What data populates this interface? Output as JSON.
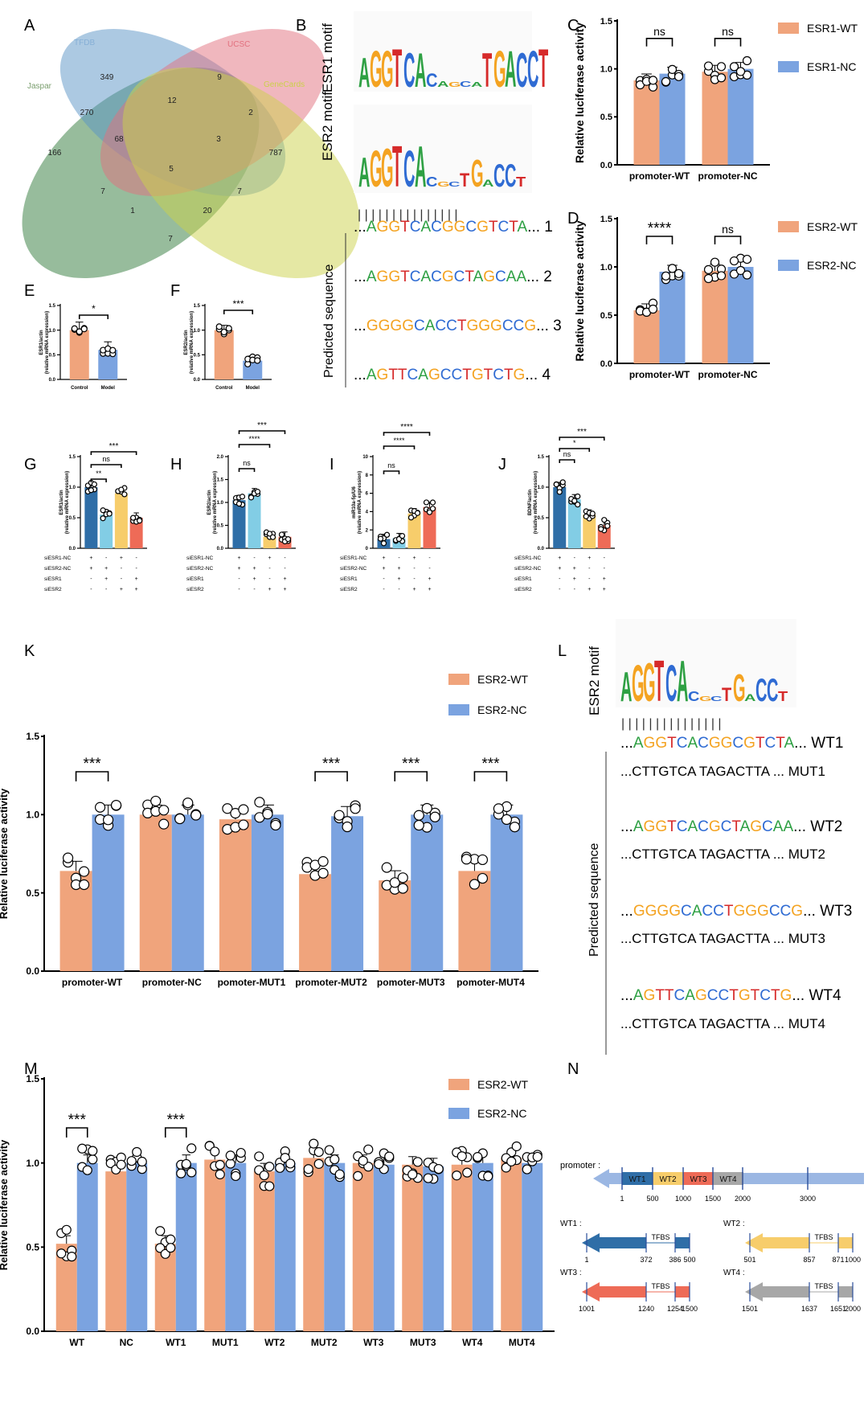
{
  "panels": {
    "A": "A",
    "B": "B",
    "C": "C",
    "D": "D",
    "E": "E",
    "F": "F",
    "G": "G",
    "H": "H",
    "I": "I",
    "J": "J",
    "K": "K",
    "L": "L",
    "M": "M",
    "N": "N"
  },
  "colors": {
    "salmon": "#f0a47c",
    "blue": "#7ba3e0",
    "g_dark": "#2f6ea7",
    "g_light": "#82cde5",
    "g_yellow": "#f7cd6b",
    "g_red": "#ee6b57",
    "dna_A": "#2ea043",
    "dna_C": "#2f6bd3",
    "dna_G": "#f4a321",
    "dna_T": "#d62a2a"
  },
  "venn": {
    "sets": [
      "Jaspar",
      "TFDB",
      "UCSC",
      "GeneCards"
    ],
    "counts": [
      "349",
      "9",
      "12",
      "270",
      "2",
      "166",
      "68",
      "3",
      "787",
      "5",
      "7",
      "7",
      "1",
      "20",
      "7"
    ]
  },
  "motifs": {
    "esr1": "ESR1 motif",
    "esr2": "ESR2 motif",
    "bar": "| | | | | | | | | | | | | | |"
  },
  "sequences": {
    "predicted_label": "Predicted sequence",
    "b_rows": [
      {
        "prefix": "...",
        "seq": "AGGTCACGGCGTCTA",
        "suffix": "... 1"
      },
      {
        "prefix": "...",
        "seq": "AGGTCACGCTAGCAA",
        "suffix": "... 2"
      },
      {
        "prefix": "...",
        "seq": "GGGGCACCTGGGCCG",
        "suffix": "... 3"
      },
      {
        "prefix": "...",
        "seq": "AGTTCAGCCTGTCTG",
        "suffix": "... 4"
      }
    ],
    "l_rows": [
      {
        "prefix": "...",
        "seq": "AGGTCACGGCGTCTA",
        "suffix": "... WT1",
        "mut": "...CTTGTCA TAGACTTA ... MUT1"
      },
      {
        "prefix": "...",
        "seq": "AGGTCACGCTAGCAA",
        "suffix": "... WT2",
        "mut": "...CTTGTCA TAGACTTA ... MUT2"
      },
      {
        "prefix": "...",
        "seq": "GGGGCACCTGGGCCG",
        "suffix": "... WT3",
        "mut": "...CTTGTCA TAGACTTA ... MUT3"
      },
      {
        "prefix": "...",
        "seq": "AGTTCAGCCTGTCTG",
        "suffix": "... WT4",
        "mut": "...CTTGTCA TAGACTTA ... MUT4"
      }
    ]
  },
  "chart_data": [
    {
      "id": "C",
      "type": "bar",
      "ylabel": "Relative luciferase activity",
      "ylim": [
        0,
        1.5
      ],
      "yticks": [
        "0.0",
        "0.5",
        "1.0",
        "1.5"
      ],
      "categories": [
        "promoter-WT",
        "promoter-NC"
      ],
      "series": [
        {
          "name": "ESR1-WT",
          "values": [
            0.88,
            0.97
          ]
        },
        {
          "name": "ESR1-NC",
          "values": [
            0.95,
            1.0
          ]
        }
      ],
      "sig": [
        "ns",
        "ns"
      ]
    },
    {
      "id": "D",
      "type": "bar",
      "ylabel": "Relative luciferase activity",
      "ylim": [
        0,
        1.5
      ],
      "yticks": [
        "0.0",
        "0.5",
        "1.0",
        "1.5"
      ],
      "categories": [
        "promoter-WT",
        "promoter-NC"
      ],
      "series": [
        {
          "name": "ESR2-WT",
          "values": [
            0.55,
            0.96
          ]
        },
        {
          "name": "ESR2-NC",
          "values": [
            0.95,
            1.0
          ]
        }
      ],
      "sig": [
        "****",
        "ns"
      ]
    },
    {
      "id": "E",
      "type": "bar",
      "ylabel": "ESR1/actin",
      "ylabel2": "(relative mRNA expression)",
      "ylim": [
        0,
        1.5
      ],
      "yticks": [
        "0.0",
        "0.5",
        "1.0",
        "1.5"
      ],
      "categories": [
        "Control",
        "Model"
      ],
      "values": [
        1.0,
        0.6
      ],
      "sig": "*"
    },
    {
      "id": "F",
      "type": "bar",
      "ylabel": "ESR2/actin",
      "ylabel2": "(relative mRNA expression)",
      "ylim": [
        0,
        1.5
      ],
      "yticks": [
        "0.0",
        "0.5",
        "1.0",
        "1.5"
      ],
      "categories": [
        "Control",
        "Model"
      ],
      "values": [
        1.0,
        0.38
      ],
      "sig": "***"
    },
    {
      "id": "G",
      "type": "bar",
      "ylabel": "ESR1/actin",
      "ylabel2": "(relative mRNA expression)",
      "ylim": [
        0,
        1.5
      ],
      "yticks": [
        "0.0",
        "0.5",
        "1.0",
        "1.5"
      ],
      "values": [
        1.0,
        0.55,
        0.9,
        0.5
      ],
      "sig": [
        "**",
        "ns",
        "***"
      ]
    },
    {
      "id": "H",
      "type": "bar",
      "ylabel": "ESR2/actin",
      "ylabel2": "(relative mRNA expression)",
      "ylim": [
        0,
        2.0
      ],
      "yticks": [
        "0.0",
        "0.5",
        "1.0",
        "1.5",
        "2.0"
      ],
      "values": [
        1.05,
        1.2,
        0.25,
        0.25
      ],
      "sig": [
        "ns",
        "****",
        "***"
      ]
    },
    {
      "id": "I",
      "type": "bar",
      "ylabel": "miR10a-5p/U6",
      "ylabel2": "(relative mRNA expression)",
      "ylim": [
        0,
        10
      ],
      "yticks": [
        "0",
        "2",
        "4",
        "6",
        "8",
        "10"
      ],
      "values": [
        1.0,
        1.1,
        3.8,
        4.5
      ],
      "sig": [
        "ns",
        "****",
        "****"
      ]
    },
    {
      "id": "J",
      "type": "bar",
      "ylabel": "BDNF/actin",
      "ylabel2": "(relative mRNA expression)",
      "ylim": [
        0,
        1.5
      ],
      "yticks": [
        "0.0",
        "0.5",
        "1.0",
        "1.5"
      ],
      "values": [
        1.0,
        0.8,
        0.55,
        0.38
      ],
      "sig": [
        "ns",
        "*",
        "***"
      ]
    },
    {
      "id": "K",
      "type": "bar",
      "ylabel": "Relative luciferase activity",
      "ylim": [
        0,
        1.5
      ],
      "yticks": [
        "0.0",
        "0.5",
        "1.0",
        "1.5"
      ],
      "categories": [
        "promoter-WT",
        "promoter-NC",
        "pomoter-MUT1",
        "promoter-MUT2",
        "pomoter-MUT3",
        "pomoter-MUT4"
      ],
      "series": [
        {
          "name": "ESR2-WT",
          "values": [
            0.64,
            1.0,
            0.97,
            0.62,
            0.58,
            0.64
          ]
        },
        {
          "name": "ESR2-NC",
          "values": [
            1.0,
            1.0,
            1.0,
            0.99,
            1.0,
            1.0
          ]
        }
      ],
      "sig": [
        "***",
        "",
        "",
        "***",
        "***",
        "***"
      ]
    },
    {
      "id": "M",
      "type": "bar",
      "ylabel": "Relative luciferase activity",
      "ylim": [
        0,
        1.5
      ],
      "yticks": [
        "0.0",
        "0.5",
        "1.0",
        "1.5"
      ],
      "categories": [
        "WT",
        "NC",
        "WT1",
        "MUT1",
        "WT2",
        "MUT2",
        "WT3",
        "MUT3",
        "WT4",
        "MUT4"
      ],
      "series": [
        {
          "name": "ESR2-WT",
          "values": [
            0.52,
            0.95,
            0.52,
            1.02,
            0.95,
            1.03,
            1.0,
            0.99,
            0.99,
            1.03
          ]
        },
        {
          "name": "ESR2-NC",
          "values": [
            1.0,
            1.0,
            1.0,
            1.0,
            1.0,
            1.0,
            0.99,
            0.98,
            1.0,
            1.0
          ]
        }
      ],
      "sig": [
        "***",
        "",
        "***",
        "",
        "",
        "",
        "",
        "",
        "",
        ""
      ]
    }
  ],
  "si_table": {
    "rows": [
      "siESR1-NC",
      "siESR2-NC",
      "siESR1",
      "siESR2"
    ],
    "signs": [
      [
        "+",
        "-",
        "+",
        "-"
      ],
      [
        "+",
        "+",
        "-",
        "-"
      ],
      [
        "-",
        "+",
        "-",
        "+"
      ],
      [
        "-",
        "-",
        "+",
        "+"
      ]
    ]
  },
  "promoter": {
    "label": "promoter :",
    "segments": [
      "WT1",
      "WT2",
      "WT3",
      "WT4"
    ],
    "ticks": [
      "1",
      "500",
      "1000",
      "1500",
      "2000",
      "3000"
    ],
    "fragments": [
      {
        "name": "WT1 :",
        "tfbs": "TFBS",
        "ticks": [
          "1",
          "372",
          "386",
          "500"
        ]
      },
      {
        "name": "WT2 :",
        "tfbs": "TFBS",
        "ticks": [
          "501",
          "857",
          "871",
          "1000"
        ]
      },
      {
        "name": "WT3 :",
        "tfbs": "TFBS",
        "ticks": [
          "1001",
          "1240",
          "1254",
          "1500"
        ]
      },
      {
        "name": "WT4 :",
        "tfbs": "TFBS",
        "ticks": [
          "1501",
          "1637",
          "1651",
          "2000"
        ]
      }
    ]
  }
}
